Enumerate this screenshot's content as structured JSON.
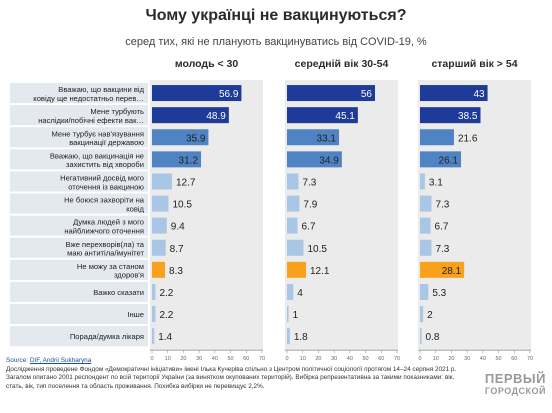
{
  "title": "Чому українці не вакцинуються?",
  "subtitle": "серед тих, які не планують вакцинуватись від COVID-19, %",
  "footer": {
    "source_label": "Source:",
    "source_links": "DIF, Andrii Sukharyna",
    "line1": "Дослідження проведене Фондом «Демократичні ініціативи» імені Ілька Кучеріва спільно з Центром політичної соціології протягом 14–24 серпня 2021 р.",
    "line2": "Загалом опитано 2001 респондент по всій території України (за винятком окупованих територій). Вибірка репрезентативна за такими показниками: вік,",
    "line3": "стать, вік, тип поселення та область проживання. Похибка вибірки не перевищує 2,2%."
  },
  "watermark": {
    "line1": "ПЕРВЫЙ",
    "line2": "ГОРОДСКОЙ"
  },
  "colors": {
    "dark": "#1f3b9a",
    "medium": "#4f83c3",
    "light": "#aac6e6",
    "orange": "#f7a11d",
    "panel_bg": "#ebebeb",
    "label_bg": "#e4e8ef"
  },
  "chart_data": {
    "type": "bar",
    "orientation": "horizontal",
    "categories": [
      "Вважаю, що вакцини від ковіду ще недостатньо перев…",
      "Мене турбують наслідки/побічні ефекти вак…",
      "Мене турбує нав'язування вакцинації державою",
      "Вважаю, що вакцинація не захистить від хвороби",
      "Негативний досвід мого оточення із вакциною",
      "Не боюся захворіти на ковід",
      "Думка людей з мого найближчого оточення",
      "Вже перехворів(ла) та маю антитіла/імунітет",
      "Не можу за станом здоров'я",
      "Важко сказати",
      "Інше",
      "Порада/думка лікаря"
    ],
    "series": [
      {
        "name": "молодь < 30",
        "values": [
          56.9,
          48.9,
          35.9,
          31.2,
          12.7,
          10.5,
          9.4,
          8.7,
          8.3,
          2.2,
          2.2,
          1.4
        ]
      },
      {
        "name": "середній вік 30-54",
        "values": [
          56,
          45.1,
          33.1,
          34.9,
          7.3,
          7.9,
          6.7,
          10.5,
          12.1,
          4,
          1,
          1.8
        ]
      },
      {
        "name": "старший вік > 54",
        "values": [
          43,
          38.5,
          21.6,
          26.1,
          3.1,
          7.3,
          6.7,
          7.3,
          28.1,
          5.3,
          2,
          0.8
        ]
      }
    ],
    "color_classes": [
      "dark",
      "dark",
      "medium",
      "medium",
      "light",
      "light",
      "light",
      "light",
      "orange",
      "light",
      "light",
      "light"
    ],
    "xlim": [
      0,
      70
    ],
    "xticks": [
      0,
      10,
      20,
      30,
      40,
      50,
      60,
      70
    ]
  }
}
